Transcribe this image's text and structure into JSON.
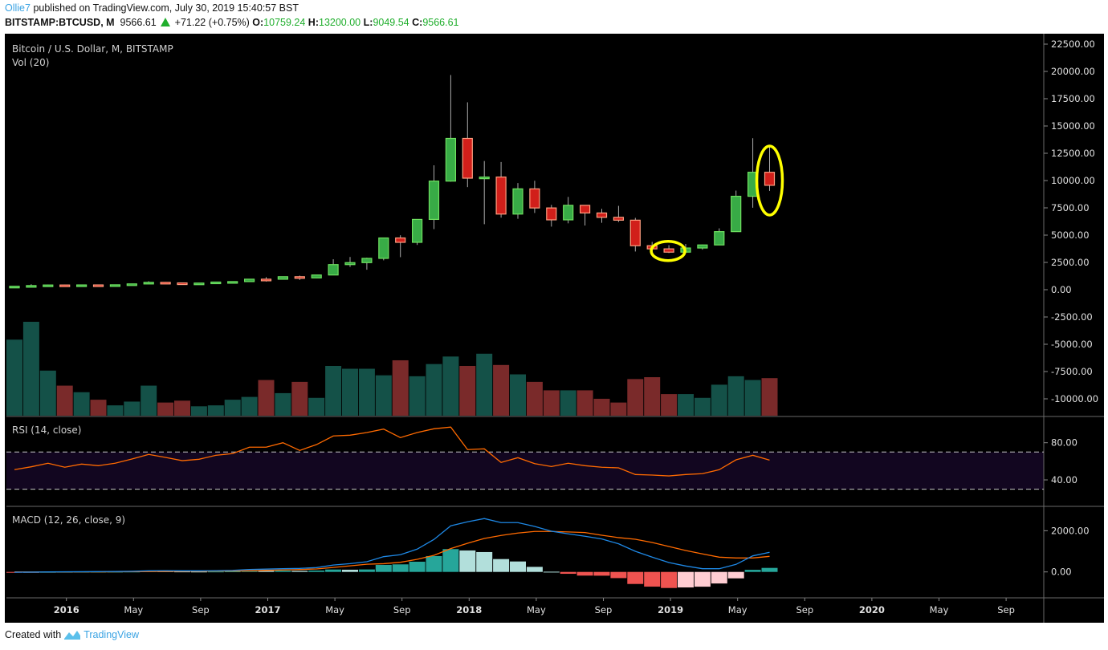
{
  "header": {
    "author": "Ollie7",
    "published": "published on TradingView.com, July 30, 2019 15:40:57 BST",
    "symbol": "BITSTAMP:BTCUSD, M",
    "last": "9566.61",
    "change": "+71.22 (+0.75%)",
    "o_label": "O:",
    "o_value": "10759.24",
    "h_label": "H:",
    "h_value": "13200.00",
    "l_label": "L:",
    "l_value": "9049.54",
    "c_label": "C:",
    "c_value": "9566.61",
    "change_direction_icon": "triangle-up-icon"
  },
  "legend": {
    "main": "Bitcoin / U.S. Dollar, M, BITSTAMP",
    "volume": "Vol (20)",
    "rsi": "RSI (14, close)",
    "macd": "MACD (12, 26, close, 9)"
  },
  "footer": {
    "prefix": "Created with",
    "brand": "TradingView",
    "logo_icon": "tradingview-logo-icon"
  },
  "colors": {
    "background": "#000000",
    "up_body": "#38ab46",
    "up_border": "#6fe060",
    "down_body": "#d11f1a",
    "down_border": "#ff9e80",
    "wick": "#aaaaaa",
    "volume_up": "#145148",
    "volume_down": "#7a2a2a",
    "rsi_line": "#ff6a00",
    "rsi_band": "#120620",
    "macd_line": "#1e88e5",
    "signal_line": "#ff6a00",
    "hist_up_strong": "#26a69a",
    "hist_up_weak": "#b2dfdb",
    "hist_down_strong": "#ef5350",
    "hist_down_weak": "#ffcdd2",
    "annotation": "#ffff00"
  },
  "chart_data": {
    "type": "candlestick",
    "title": "Bitcoin / U.S. Dollar, M, BITSTAMP",
    "interval": "monthly",
    "x": [
      "2015-10",
      "2015-11",
      "2015-12",
      "2016-01",
      "2016-02",
      "2016-03",
      "2016-04",
      "2016-05",
      "2016-06",
      "2016-07",
      "2016-08",
      "2016-09",
      "2016-10",
      "2016-11",
      "2016-12",
      "2017-01",
      "2017-02",
      "2017-03",
      "2017-04",
      "2017-05",
      "2017-06",
      "2017-07",
      "2017-08",
      "2017-09",
      "2017-10",
      "2017-11",
      "2017-12",
      "2018-01",
      "2018-02",
      "2018-03",
      "2018-04",
      "2018-05",
      "2018-06",
      "2018-07",
      "2018-08",
      "2018-09",
      "2018-10",
      "2018-11",
      "2018-12",
      "2019-01",
      "2019-02",
      "2019-03",
      "2019-04",
      "2019-05",
      "2019-06",
      "2019-07"
    ],
    "open": [
      236,
      314,
      377,
      430,
      369,
      437,
      416,
      448,
      531,
      673,
      621,
      573,
      608,
      700,
      742,
      963,
      960,
      1190,
      1080,
      1348,
      2300,
      2480,
      2870,
      4740,
      4340,
      6440,
      9950,
      13860,
      10220,
      10320,
      6930,
      9240,
      7490,
      6400,
      7730,
      7030,
      6630,
      6370,
      4030,
      3740,
      3440,
      3820,
      4100,
      5320,
      8560,
      10759.24
    ],
    "high": [
      327,
      500,
      467,
      462,
      448,
      440,
      468,
      552,
      775,
      704,
      627,
      629,
      724,
      757,
      977,
      1153,
      1211,
      1291,
      1357,
      2790,
      3000,
      2930,
      4760,
      4990,
      6470,
      11400,
      19666,
      17170,
      11790,
      11700,
      9770,
      9980,
      7770,
      8500,
      7760,
      7410,
      7680,
      6580,
      4380,
      4080,
      4190,
      4130,
      5620,
      9080,
      13880,
      13200
    ],
    "low": [
      235,
      310,
      350,
      350,
      364,
      391,
      410,
      439,
      523,
      602,
      480,
      570,
      605,
      677,
      742,
      740,
      933,
      890,
      1060,
      1348,
      2090,
      1830,
      2690,
      2980,
      4100,
      5550,
      9900,
      9400,
      6000,
      6600,
      6500,
      7030,
      5780,
      6080,
      5880,
      6130,
      6200,
      3500,
      3120,
      3360,
      3380,
      3670,
      4080,
      5320,
      7510,
      9049.54
    ],
    "close": [
      314,
      377,
      430,
      369,
      437,
      416,
      448,
      531,
      673,
      621,
      573,
      608,
      700,
      742,
      963,
      960,
      1190,
      1080,
      1348,
      2300,
      2480,
      2870,
      4740,
      4340,
      6440,
      9950,
      13860,
      10220,
      10320,
      6930,
      9240,
      7490,
      6400,
      7730,
      7030,
      6630,
      6370,
      4030,
      3740,
      3440,
      3820,
      4100,
      5320,
      8560,
      10760,
      9566.61
    ],
    "ylim": [
      -11000,
      23500
    ],
    "yticks": [
      "22500.00",
      "20000.00",
      "17500.00",
      "15000.00",
      "12500.00",
      "10000.00",
      "7500.00",
      "5000.00",
      "2500.00",
      "0.00",
      "-2500.00",
      "-5000.00",
      "-7500.00",
      "-10000.00"
    ],
    "xticks": [
      {
        "month": "2016-01",
        "label": "2016"
      },
      {
        "month": "2016-05",
        "label": "May"
      },
      {
        "month": "2016-09",
        "label": "Sep"
      },
      {
        "month": "2017-01",
        "label": "2017"
      },
      {
        "month": "2017-05",
        "label": "May"
      },
      {
        "month": "2017-09",
        "label": "Sep"
      },
      {
        "month": "2018-01",
        "label": "2018"
      },
      {
        "month": "2018-05",
        "label": "May"
      },
      {
        "month": "2018-09",
        "label": "Sep"
      },
      {
        "month": "2019-01",
        "label": "2019"
      },
      {
        "month": "2019-05",
        "label": "May"
      },
      {
        "month": "2019-09",
        "label": "Sep"
      },
      {
        "month": "2020-01",
        "label": "2020"
      },
      {
        "month": "2020-05",
        "label": "May"
      },
      {
        "month": "2020-09",
        "label": "Sep"
      }
    ],
    "volume": {
      "name": "Vol (20)",
      "unit": "relative (max = 100)",
      "values": [
        81,
        100,
        48,
        32,
        25,
        17,
        11,
        15,
        32,
        14,
        16,
        10,
        11,
        17,
        20,
        38,
        24,
        36,
        19,
        53,
        50,
        50,
        43,
        59,
        42,
        55,
        63,
        53,
        66,
        54,
        44,
        36,
        27,
        27,
        27,
        18,
        14,
        39,
        41,
        23,
        23,
        19,
        33,
        42,
        38,
        40
      ]
    },
    "rsi": {
      "name": "RSI (14, close)",
      "ylim": [
        20,
        105
      ],
      "yticks": [
        "80.00",
        "40.00"
      ],
      "band": [
        30,
        70
      ],
      "values": [
        51.0,
        54.1,
        57.9,
        53.6,
        57.0,
        55.3,
        57.9,
        62.5,
        67.4,
        64.2,
        60.7,
        62.2,
        66.5,
        68.3,
        75.2,
        75.2,
        80.0,
        71.7,
        78.0,
        87.3,
        88.1,
        91.0,
        94.7,
        85.5,
        91.0,
        95.0,
        96.8,
        72.6,
        73.4,
        58.8,
        63.9,
        57.5,
        54.4,
        57.9,
        55.3,
        53.6,
        53.0,
        45.8,
        45.2,
        44.3,
        45.8,
        46.7,
        51.0,
        61.6,
        66.5,
        61.3
      ]
    },
    "macd": {
      "name": "MACD (12, 26, close, 9)",
      "yticks": [
        "2000.00",
        "0.00"
      ],
      "macd": [
        -15,
        -8,
        0,
        5,
        10,
        15,
        20,
        30,
        55,
        60,
        55,
        55,
        62,
        75,
        117,
        137,
        156,
        170,
        210,
        335,
        403,
        494,
        741,
        835,
        1108,
        1576,
        2239,
        2434,
        2590,
        2395,
        2395,
        2211,
        1977,
        1849,
        1732,
        1599,
        1365,
        1002,
        717,
        456,
        288,
        156,
        156,
        366,
        780,
        951
      ],
      "signal": [
        0,
        -2,
        -1,
        0,
        2,
        5,
        8,
        12,
        20,
        28,
        33,
        37,
        42,
        49,
        55,
        78,
        94,
        117,
        143,
        218,
        296,
        374,
        400,
        468,
        612,
        807,
        1131,
        1392,
        1626,
        1771,
        1888,
        1966,
        1966,
        1940,
        1911,
        1782,
        1665,
        1587,
        1431,
        1236,
        1041,
        873,
        717,
        678,
        678,
        756
      ]
    },
    "annotations": [
      {
        "type": "ellipse",
        "around": "2019-01"
      },
      {
        "type": "ellipse",
        "around": "2019-07"
      }
    ]
  }
}
